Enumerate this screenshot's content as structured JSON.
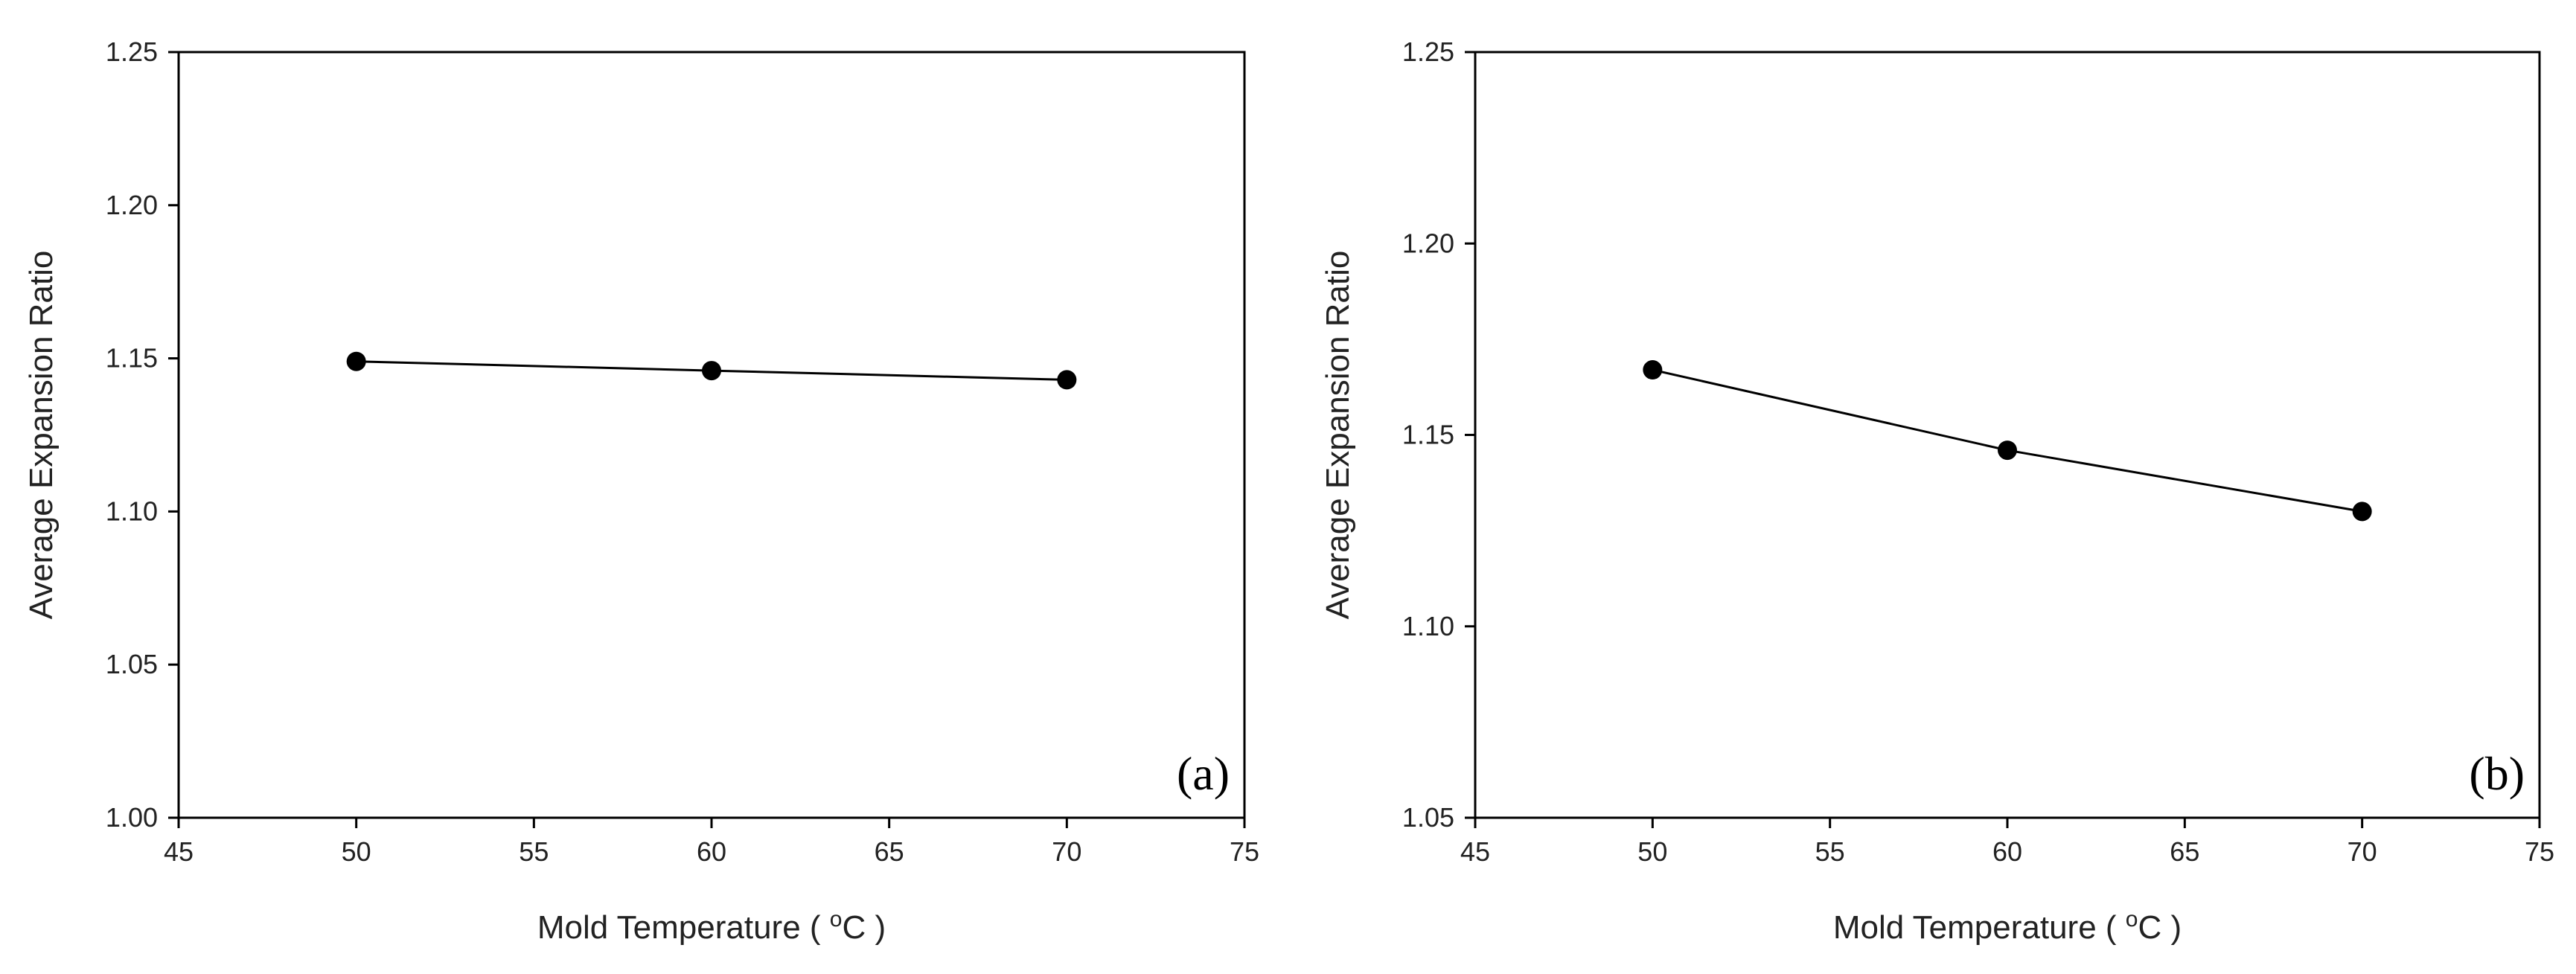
{
  "chart_data": [
    {
      "type": "line",
      "panel_label": "(a)",
      "xlabel_prefix": "Mold Temperature ( ",
      "xlabel_sup": "o",
      "xlabel_suffix": "C )",
      "ylabel": "Average Expansion Ratio",
      "xlim": [
        45,
        75
      ],
      "ylim": [
        1.0,
        1.25
      ],
      "xticks": [
        45,
        50,
        55,
        60,
        65,
        70,
        75
      ],
      "xtick_labels": [
        "45",
        "50",
        "55",
        "60",
        "65",
        "70",
        "75"
      ],
      "yticks": [
        1.0,
        1.05,
        1.1,
        1.15,
        1.2,
        1.25
      ],
      "ytick_labels": [
        "1.00",
        "1.05",
        "1.10",
        "1.15",
        "1.20",
        "1.25"
      ],
      "series": [
        {
          "x": [
            50,
            60,
            70
          ],
          "values": [
            1.149,
            1.146,
            1.143
          ]
        }
      ],
      "grid": false,
      "line_color": "#000000",
      "marker_color": "#000000"
    },
    {
      "type": "line",
      "panel_label": "(b)",
      "xlabel_prefix": "Mold Temperature ( ",
      "xlabel_sup": "o",
      "xlabel_suffix": "C )",
      "ylabel": "Average Expansion Ratio",
      "xlim": [
        45,
        75
      ],
      "ylim": [
        1.05,
        1.25
      ],
      "xticks": [
        45,
        50,
        55,
        60,
        65,
        70,
        75
      ],
      "xtick_labels": [
        "45",
        "50",
        "55",
        "60",
        "65",
        "70",
        "75"
      ],
      "yticks": [
        1.05,
        1.1,
        1.15,
        1.2,
        1.25
      ],
      "ytick_labels": [
        "1.05",
        "1.10",
        "1.15",
        "1.20",
        "1.25"
      ],
      "series": [
        {
          "x": [
            50,
            60,
            70
          ],
          "values": [
            1.167,
            1.146,
            1.13
          ]
        }
      ],
      "grid": false,
      "line_color": "#000000",
      "marker_color": "#000000"
    }
  ]
}
